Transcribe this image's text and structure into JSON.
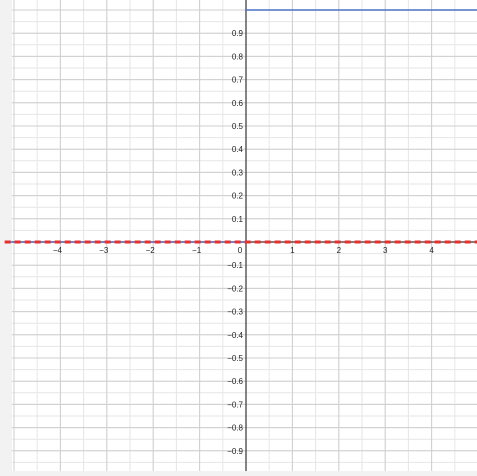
{
  "chart_data": {
    "type": "line",
    "title": "",
    "xlabel": "",
    "ylabel": "",
    "xlim": [
      -5.2,
      5.0
    ],
    "ylim": [
      -1.0,
      1.0
    ],
    "grid": true,
    "x_ticks": [
      -4,
      -3,
      -2,
      -1,
      0,
      1,
      2,
      3,
      4
    ],
    "x_tick_labels": [
      "−4",
      "−3",
      "−2",
      "−1",
      "0",
      "1",
      "2",
      "3",
      "4"
    ],
    "y_ticks": [
      0.9,
      0.8,
      0.7,
      0.6,
      0.5,
      0.4,
      0.3,
      0.2,
      0.1,
      -0.1,
      -0.2,
      -0.3,
      -0.4,
      -0.5,
      -0.6,
      -0.7,
      -0.8,
      -0.9
    ],
    "y_tick_labels": [
      "0.9",
      "0.8",
      "0.7",
      "0.6",
      "0.5",
      "0.4",
      "0.3",
      "0.2",
      "0.1",
      "−0.1",
      "−0.2",
      "−0.3",
      "−0.4",
      "−0.5",
      "−0.6",
      "−0.7",
      "−0.8",
      "−0.9"
    ],
    "series": [
      {
        "style": "solid",
        "color": "#4a72c8",
        "segments": [
          {
            "x": [
              -5.2,
              0
            ],
            "y": [
              0,
              0
            ]
          },
          {
            "x": [
              0,
              5.0
            ],
            "y": [
              1,
              1
            ]
          }
        ]
      },
      {
        "style": "dashed",
        "color": "#e8302e",
        "segments": [
          {
            "x": [
              -5.2,
              5.0
            ],
            "y": [
              0,
              0
            ]
          }
        ]
      }
    ]
  }
}
